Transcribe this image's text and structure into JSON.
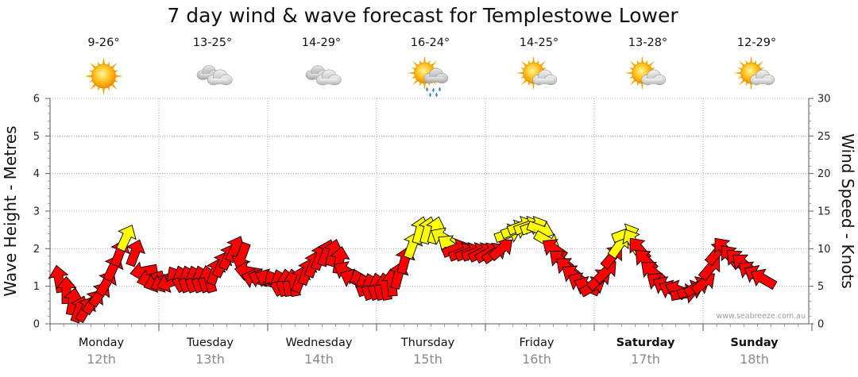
{
  "chart_data": {
    "type": "bar",
    "title": "7 day wind & wave forecast for Templestowe Lower",
    "ylabel_left": "Wave Height - Metres",
    "ylabel_right": "Wind Speed - Knots",
    "ylim_left": [
      0,
      6
    ],
    "ylim_right": [
      0,
      30
    ],
    "yticks_left": [
      "0",
      "1",
      "2",
      "3",
      "4",
      "5",
      "6"
    ],
    "yticks_right": [
      "0",
      "5",
      "10",
      "15",
      "20",
      "25",
      "30"
    ],
    "grid": true,
    "days": [
      {
        "name": "Monday",
        "date": "12th",
        "bold": false,
        "temp": "9-26°",
        "icon": "sunny-icon"
      },
      {
        "name": "Tuesday",
        "date": "13th",
        "bold": false,
        "temp": "13-25°",
        "icon": "cloudy-icon"
      },
      {
        "name": "Wednesday",
        "date": "14th",
        "bold": false,
        "temp": "14-29°",
        "icon": "cloudy-icon"
      },
      {
        "name": "Thursday",
        "date": "15th",
        "bold": false,
        "temp": "16-24°",
        "icon": "sun-cloud-rain-icon"
      },
      {
        "name": "Friday",
        "date": "16th",
        "bold": false,
        "temp": "14-25°",
        "icon": "partly-cloudy-icon"
      },
      {
        "name": "Saturday",
        "date": "17th",
        "bold": true,
        "temp": "13-28°",
        "icon": "partly-cloudy-icon"
      },
      {
        "name": "Sunday",
        "date": "18th",
        "bold": true,
        "temp": "12-29°",
        "icon": "partly-cloudy-icon"
      }
    ],
    "wind_series": {
      "name": "Wind Speed - Knots",
      "color_low": "#ff0000",
      "color_high": "#ffff00",
      "threshold_knots": 10.5,
      "points": [
        {
          "t": 0.08,
          "speed": 6.0,
          "dir": 350
        },
        {
          "t": 0.15,
          "speed": 4.5,
          "dir": 0
        },
        {
          "t": 0.21,
          "speed": 3.0,
          "dir": 10
        },
        {
          "t": 0.27,
          "speed": 2.0,
          "dir": 20
        },
        {
          "t": 0.33,
          "speed": 2.0,
          "dir": 30
        },
        {
          "t": 0.4,
          "speed": 3.0,
          "dir": 35
        },
        {
          "t": 0.46,
          "speed": 4.0,
          "dir": 35
        },
        {
          "t": 0.52,
          "speed": 5.5,
          "dir": 30
        },
        {
          "t": 0.58,
          "speed": 7.5,
          "dir": 25
        },
        {
          "t": 0.64,
          "speed": 9.5,
          "dir": 20
        },
        {
          "t": 0.7,
          "speed": 11.5,
          "dir": 25
        },
        {
          "t": 0.78,
          "speed": 9.5,
          "dir": 20
        },
        {
          "t": 0.86,
          "speed": 7.0,
          "dir": 260
        },
        {
          "t": 0.92,
          "speed": 6.0,
          "dir": 255
        },
        {
          "t": 0.98,
          "speed": 5.5,
          "dir": 250
        },
        {
          "t": 1.04,
          "speed": 5.5,
          "dir": 245
        },
        {
          "t": 1.1,
          "speed": 5.5,
          "dir": 250
        },
        {
          "t": 1.16,
          "speed": 6.0,
          "dir": 330
        },
        {
          "t": 1.22,
          "speed": 6.0,
          "dir": 340
        },
        {
          "t": 1.28,
          "speed": 6.0,
          "dir": 340
        },
        {
          "t": 1.34,
          "speed": 6.0,
          "dir": 340
        },
        {
          "t": 1.4,
          "speed": 6.0,
          "dir": 340
        },
        {
          "t": 1.46,
          "speed": 6.0,
          "dir": 345
        },
        {
          "t": 1.52,
          "speed": 7.0,
          "dir": 20
        },
        {
          "t": 1.58,
          "speed": 8.0,
          "dir": 25
        },
        {
          "t": 1.64,
          "speed": 9.0,
          "dir": 25
        },
        {
          "t": 1.7,
          "speed": 10.0,
          "dir": 25
        },
        {
          "t": 1.76,
          "speed": 9.0,
          "dir": 200
        },
        {
          "t": 1.82,
          "speed": 7.0,
          "dir": 280
        },
        {
          "t": 1.88,
          "speed": 6.0,
          "dir": 285
        },
        {
          "t": 1.94,
          "speed": 6.0,
          "dir": 290
        },
        {
          "t": 2.0,
          "speed": 6.0,
          "dir": 295
        },
        {
          "t": 2.06,
          "speed": 5.5,
          "dir": 330
        },
        {
          "t": 2.12,
          "speed": 5.5,
          "dir": 340
        },
        {
          "t": 2.18,
          "speed": 5.5,
          "dir": 350
        },
        {
          "t": 2.24,
          "speed": 5.5,
          "dir": 350
        },
        {
          "t": 2.3,
          "speed": 6.0,
          "dir": 20
        },
        {
          "t": 2.36,
          "speed": 7.0,
          "dir": 20
        },
        {
          "t": 2.42,
          "speed": 8.0,
          "dir": 20
        },
        {
          "t": 2.48,
          "speed": 9.0,
          "dir": 20
        },
        {
          "t": 2.54,
          "speed": 9.5,
          "dir": 20
        },
        {
          "t": 2.6,
          "speed": 9.5,
          "dir": 15
        },
        {
          "t": 2.66,
          "speed": 8.5,
          "dir": 10
        },
        {
          "t": 2.72,
          "speed": 7.0,
          "dir": 300
        },
        {
          "t": 2.78,
          "speed": 6.0,
          "dir": 295
        },
        {
          "t": 2.84,
          "speed": 5.5,
          "dir": 340
        },
        {
          "t": 2.9,
          "speed": 5.0,
          "dir": 340
        },
        {
          "t": 2.96,
          "speed": 5.0,
          "dir": 340
        },
        {
          "t": 3.02,
          "speed": 5.0,
          "dir": 345
        },
        {
          "t": 3.08,
          "speed": 5.0,
          "dir": 350
        },
        {
          "t": 3.14,
          "speed": 5.5,
          "dir": 355
        },
        {
          "t": 3.2,
          "speed": 6.5,
          "dir": 15
        },
        {
          "t": 3.26,
          "speed": 8.5,
          "dir": 15
        },
        {
          "t": 3.33,
          "speed": 10.5,
          "dir": 20
        },
        {
          "t": 3.4,
          "speed": 12.5,
          "dir": 15
        },
        {
          "t": 3.47,
          "speed": 12.5,
          "dir": 15
        },
        {
          "t": 3.54,
          "speed": 12.5,
          "dir": 15
        },
        {
          "t": 3.61,
          "speed": 11.5,
          "dir": 300
        },
        {
          "t": 3.67,
          "speed": 10.5,
          "dir": 305
        },
        {
          "t": 3.73,
          "speed": 10.0,
          "dir": 70
        },
        {
          "t": 3.79,
          "speed": 9.5,
          "dir": 70
        },
        {
          "t": 3.85,
          "speed": 9.5,
          "dir": 70
        },
        {
          "t": 3.91,
          "speed": 9.5,
          "dir": 70
        },
        {
          "t": 3.97,
          "speed": 9.5,
          "dir": 65
        },
        {
          "t": 4.03,
          "speed": 9.5,
          "dir": 60
        },
        {
          "t": 4.09,
          "speed": 9.5,
          "dir": 55
        },
        {
          "t": 4.15,
          "speed": 10.0,
          "dir": 50
        },
        {
          "t": 4.21,
          "speed": 12.0,
          "dir": 70
        },
        {
          "t": 4.27,
          "speed": 12.5,
          "dir": 70
        },
        {
          "t": 4.33,
          "speed": 13.0,
          "dir": 70
        },
        {
          "t": 4.39,
          "speed": 13.0,
          "dir": 70
        },
        {
          "t": 4.45,
          "speed": 13.0,
          "dir": 70
        },
        {
          "t": 4.51,
          "speed": 12.5,
          "dir": 110
        },
        {
          "t": 4.57,
          "speed": 11.0,
          "dir": 120
        },
        {
          "t": 4.63,
          "speed": 10.0,
          "dir": 305
        },
        {
          "t": 4.69,
          "speed": 8.5,
          "dir": 310
        },
        {
          "t": 4.75,
          "speed": 7.5,
          "dir": 310
        },
        {
          "t": 4.81,
          "speed": 6.5,
          "dir": 305
        },
        {
          "t": 4.87,
          "speed": 5.5,
          "dir": 300
        },
        {
          "t": 4.93,
          "speed": 5.0,
          "dir": 295
        },
        {
          "t": 4.99,
          "speed": 5.0,
          "dir": 60
        },
        {
          "t": 5.05,
          "speed": 6.0,
          "dir": 50
        },
        {
          "t": 5.11,
          "speed": 7.0,
          "dir": 45
        },
        {
          "t": 5.17,
          "speed": 9.0,
          "dir": 40
        },
        {
          "t": 5.23,
          "speed": 10.5,
          "dir": 35
        },
        {
          "t": 5.29,
          "speed": 12.0,
          "dir": 70
        },
        {
          "t": 5.35,
          "speed": 11.0,
          "dir": 330
        },
        {
          "t": 5.41,
          "speed": 10.0,
          "dir": 320
        },
        {
          "t": 5.47,
          "speed": 8.5,
          "dir": 315
        },
        {
          "t": 5.53,
          "speed": 7.0,
          "dir": 310
        },
        {
          "t": 5.59,
          "speed": 5.5,
          "dir": 305
        },
        {
          "t": 5.65,
          "speed": 5.0,
          "dir": 300
        },
        {
          "t": 5.71,
          "speed": 4.5,
          "dir": 295
        },
        {
          "t": 5.77,
          "speed": 4.5,
          "dir": 290
        },
        {
          "t": 5.83,
          "speed": 4.0,
          "dir": 80
        },
        {
          "t": 5.89,
          "speed": 4.5,
          "dir": 70
        },
        {
          "t": 5.95,
          "speed": 5.0,
          "dir": 60
        },
        {
          "t": 6.01,
          "speed": 5.5,
          "dir": 50
        },
        {
          "t": 6.07,
          "speed": 7.5,
          "dir": 40
        },
        {
          "t": 6.13,
          "speed": 9.5,
          "dir": 40
        },
        {
          "t": 6.19,
          "speed": 10.0,
          "dir": 320
        },
        {
          "t": 6.25,
          "speed": 9.0,
          "dir": 320
        },
        {
          "t": 6.31,
          "speed": 8.5,
          "dir": 315
        },
        {
          "t": 6.37,
          "speed": 8.0,
          "dir": 310
        },
        {
          "t": 6.43,
          "speed": 7.0,
          "dir": 305
        },
        {
          "t": 6.49,
          "speed": 6.5,
          "dir": 300
        },
        {
          "t": 6.55,
          "speed": 6.0,
          "dir": 300
        }
      ]
    },
    "watermark": "www.seabreeze.com.au"
  }
}
